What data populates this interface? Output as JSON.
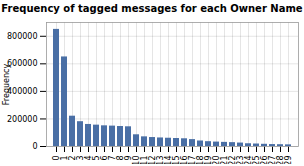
{
  "chart_data": {
    "type": "bar",
    "title": "Frequency of tagged messages for each Owner Name",
    "ylabel": "Frequency",
    "categories": [
      "0",
      "1",
      "2",
      "3",
      "4",
      "5",
      "6",
      "7",
      "8",
      "9",
      "10",
      "11",
      "12",
      "13",
      "14",
      "15",
      "16",
      "17",
      "18",
      "19",
      "20",
      "21",
      "22",
      "23",
      "24",
      "25",
      "26",
      "27",
      "28",
      "29"
    ],
    "values": [
      850000,
      650000,
      220000,
      180000,
      160000,
      155000,
      150000,
      148000,
      145000,
      143000,
      85000,
      70000,
      65000,
      62000,
      60000,
      58000,
      56000,
      50000,
      40000,
      35000,
      32000,
      30000,
      28000,
      25000,
      20000,
      18000,
      16000,
      14000,
      13000,
      12000
    ],
    "color": "#4a6fa5",
    "ylim": [
      0,
      900000
    ],
    "yticks": [
      0,
      200000,
      400000,
      600000,
      800000
    ],
    "grid": true
  }
}
